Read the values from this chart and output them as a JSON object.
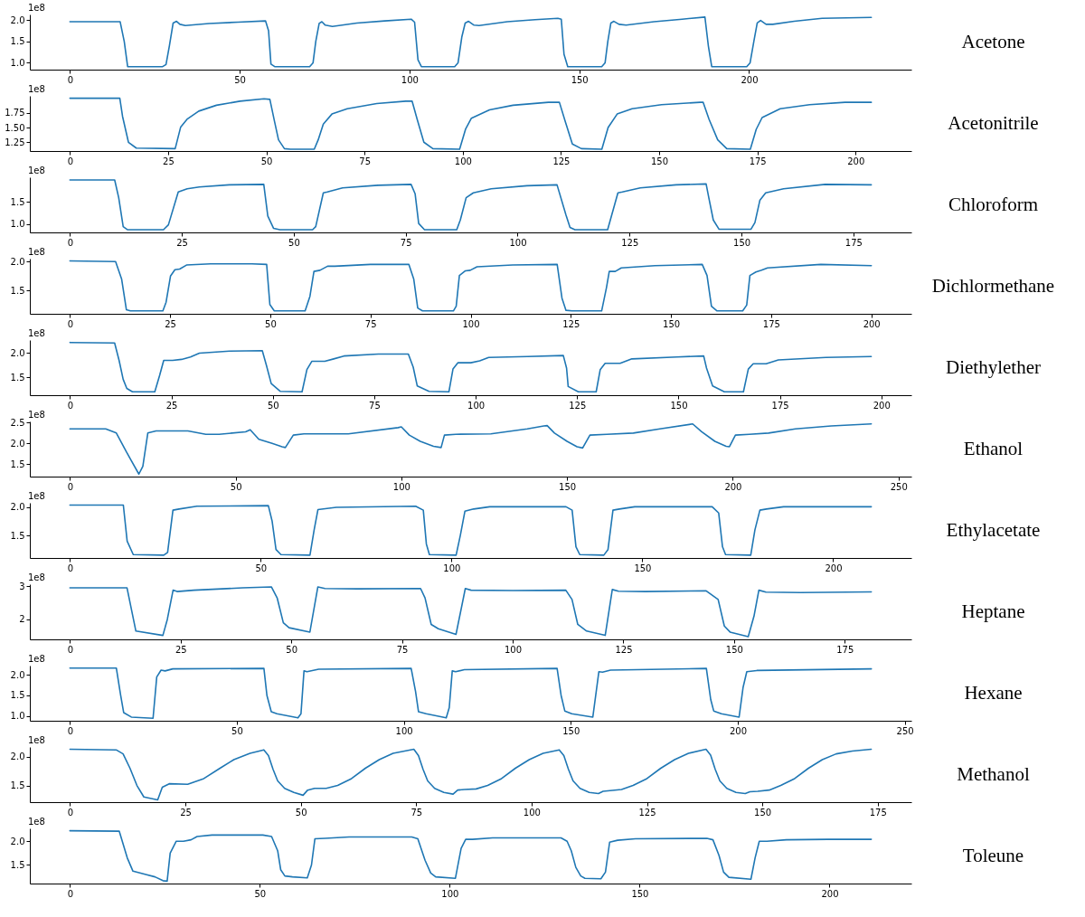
{
  "chart_data": [
    {
      "type": "line",
      "annotations": [
        "1e8"
      ],
      "xlim": [
        -11.8,
        247.8
      ],
      "ylim": [
        0.84,
        2.13
      ],
      "xticks": [
        0,
        50,
        100,
        150,
        200
      ],
      "yticks": [
        {
          "value": 1.0,
          "label": "1.0"
        },
        {
          "value": 1.5,
          "label": "1.5"
        },
        {
          "value": 2.0,
          "label": "2.0"
        }
      ],
      "series": [
        {
          "name": "Acetone",
          "color": "#1f77b4",
          "x": [
            0,
            14.8,
            16,
            17,
            27.3,
            28.3,
            29.3,
            30.4,
            31.4,
            32.4,
            34,
            41,
            49.5,
            57.6,
            58.5,
            59.2,
            60.3,
            70.6,
            71.6,
            72.4,
            73.4,
            74.2,
            75.2,
            77.3,
            84.5,
            92.7,
            100.5,
            101.5,
            102.5,
            103.5,
            113.3,
            114.3,
            115.4,
            116.4,
            117.4,
            119,
            120.5,
            128.8,
            137,
            143.7,
            144.7,
            145.5,
            146.6,
            156.6,
            157.6,
            158.4,
            159.3,
            160.2,
            161.7,
            163.8,
            172,
            180.3,
            187,
            188,
            189,
            199.3,
            200.3,
            201.4,
            202.4,
            203.4,
            205,
            207,
            213.3,
            221.5,
            236
          ],
          "values": [
            1.96,
            1.96,
            1.5,
            0.91,
            0.91,
            0.96,
            1.4,
            1.93,
            1.97,
            1.9,
            1.87,
            1.92,
            1.95,
            1.98,
            1.75,
            0.97,
            0.91,
            0.91,
            1.0,
            1.5,
            1.92,
            1.96,
            1.88,
            1.85,
            1.93,
            1.98,
            2.02,
            1.95,
            1.07,
            0.91,
            0.91,
            1.0,
            1.6,
            1.93,
            1.97,
            1.88,
            1.87,
            1.96,
            2.01,
            2.04,
            2.02,
            1.2,
            0.91,
            0.91,
            1.0,
            1.5,
            1.93,
            1.97,
            1.9,
            1.88,
            1.96,
            2.02,
            2.07,
            1.4,
            0.91,
            0.91,
            1.0,
            1.5,
            1.93,
            1.99,
            1.9,
            1.9,
            1.97,
            2.04,
            2.06
          ]
        }
      ]
    },
    {
      "type": "line",
      "annotations": [
        "1e8"
      ],
      "xlim": [
        -10.2,
        214.2
      ],
      "ylim": [
        1.1,
        2.04
      ],
      "xticks": [
        0,
        25,
        50,
        75,
        100,
        125,
        150,
        175,
        200
      ],
      "yticks": [
        {
          "value": 1.25,
          "label": "1.25"
        },
        {
          "value": 1.5,
          "label": "1.50"
        },
        {
          "value": 1.75,
          "label": "1.75"
        }
      ],
      "series": [
        {
          "name": "Acetonitrile",
          "color": "#1f77b4",
          "x": [
            0,
            12.7,
            13.4,
            14.9,
            16.9,
            26.8,
            28.2,
            29.8,
            32.8,
            37.3,
            43.3,
            49.4,
            50.9,
            52.1,
            53.1,
            54.6,
            56.1,
            62.2,
            63.2,
            64.5,
            66.7,
            70.6,
            78.1,
            85.5,
            87.1,
            88.4,
            90.1,
            92.4,
            99.2,
            100.7,
            102.2,
            106.8,
            112.8,
            121.8,
            124.6,
            126.1,
            127.9,
            130.2,
            135.4,
            137,
            139.3,
            143.1,
            150.6,
            160.4,
            161.2,
            162.7,
            164.9,
            167.2,
            173.2,
            174.7,
            176.2,
            180.8,
            188.3,
            197.3,
            204
          ],
          "values": [
            2.0,
            2.0,
            1.69,
            1.25,
            1.15,
            1.14,
            1.51,
            1.64,
            1.78,
            1.88,
            1.95,
            1.99,
            1.98,
            1.6,
            1.29,
            1.14,
            1.13,
            1.13,
            1.29,
            1.56,
            1.73,
            1.82,
            1.91,
            1.95,
            1.95,
            1.64,
            1.25,
            1.14,
            1.13,
            1.47,
            1.66,
            1.8,
            1.88,
            1.93,
            1.93,
            1.6,
            1.22,
            1.14,
            1.13,
            1.5,
            1.73,
            1.82,
            1.89,
            1.93,
            1.93,
            1.64,
            1.29,
            1.14,
            1.13,
            1.47,
            1.67,
            1.82,
            1.89,
            1.93,
            1.93
          ]
        }
      ]
    },
    {
      "type": "line",
      "annotations": [
        "1e8"
      ],
      "xlim": [
        -8.95,
        187.95
      ],
      "ylim": [
        0.81,
        2.05
      ],
      "xticks": [
        0,
        25,
        50,
        75,
        100,
        125,
        150,
        175
      ],
      "yticks": [
        {
          "value": 1.0,
          "label": "1.0"
        },
        {
          "value": 1.5,
          "label": "1.5"
        }
      ],
      "series": [
        {
          "name": "Chloroform",
          "color": "#1f77b4",
          "x": [
            0,
            10,
            10.9,
            11.9,
            12.9,
            20.9,
            22,
            24.2,
            26.2,
            28.9,
            35.6,
            43.3,
            44.2,
            45.5,
            46.9,
            54.2,
            54.9,
            56.6,
            57.5,
            60.9,
            68.8,
            76.2,
            77.1,
            77.9,
            79.2,
            86.4,
            87.2,
            88.5,
            90.1,
            94.1,
            102.1,
            108.8,
            110.8,
            111.7,
            112.8,
            120.1,
            122.4,
            123.4,
            127.4,
            135.4,
            142.1,
            142.7,
            143.7,
            145,
            152.1,
            153,
            154.1,
            155.4,
            159.4,
            168.7,
            179
          ],
          "values": [
            1.99,
            1.99,
            1.59,
            0.94,
            0.87,
            0.87,
            0.98,
            1.72,
            1.79,
            1.83,
            1.88,
            1.89,
            1.18,
            0.9,
            0.87,
            0.87,
            0.94,
            1.7,
            1.72,
            1.81,
            1.87,
            1.89,
            1.68,
            1.01,
            0.87,
            0.87,
            1.09,
            1.59,
            1.7,
            1.79,
            1.86,
            1.88,
            1.2,
            0.92,
            0.87,
            0.87,
            1.7,
            1.72,
            1.81,
            1.88,
            1.9,
            1.59,
            1.09,
            0.88,
            0.88,
            1.03,
            1.53,
            1.7,
            1.79,
            1.89,
            1.88
          ]
        }
      ]
    },
    {
      "type": "line",
      "annotations": [
        "1e8"
      ],
      "xlim": [
        -10,
        210
      ],
      "ylim": [
        1.1,
        2.05
      ],
      "xticks": [
        0,
        25,
        50,
        75,
        100,
        125,
        150,
        175,
        200
      ],
      "yticks": [
        {
          "value": 1.5,
          "label": "1.5"
        },
        {
          "value": 2.0,
          "label": "2.0"
        }
      ],
      "series": [
        {
          "name": "Dichlormethane",
          "color": "#1f77b4",
          "x": [
            0,
            11.4,
            12.9,
            14.1,
            15.1,
            23.2,
            24,
            25.1,
            26.2,
            27.4,
            29.1,
            35.1,
            45.4,
            49.1,
            49.9,
            51,
            58.7,
            59.9,
            60.9,
            62.4,
            64.3,
            66.1,
            75,
            84.6,
            85.8,
            86.8,
            88,
            95.7,
            96.4,
            97.2,
            98.7,
            99.9,
            101.6,
            110.5,
            121.6,
            122.8,
            123.8,
            125.3,
            132.7,
            133.9,
            134.6,
            136.1,
            137.6,
            146,
            157.8,
            159,
            160.1,
            161.5,
            167.9,
            168.9,
            169.7,
            171.2,
            172.6,
            174.1,
            187.4,
            200
          ],
          "values": [
            2.01,
            2.0,
            1.7,
            1.17,
            1.15,
            1.15,
            1.3,
            1.75,
            1.86,
            1.87,
            1.94,
            1.96,
            1.96,
            1.95,
            1.26,
            1.15,
            1.15,
            1.4,
            1.83,
            1.85,
            1.92,
            1.92,
            1.95,
            1.95,
            1.7,
            1.2,
            1.15,
            1.15,
            1.23,
            1.76,
            1.84,
            1.85,
            1.91,
            1.94,
            1.95,
            1.37,
            1.16,
            1.15,
            1.15,
            1.55,
            1.83,
            1.83,
            1.89,
            1.93,
            1.95,
            1.76,
            1.23,
            1.15,
            1.15,
            1.25,
            1.76,
            1.82,
            1.85,
            1.89,
            1.95,
            1.93
          ]
        }
      ]
    },
    {
      "type": "line",
      "annotations": [
        "1e8"
      ],
      "xlim": [
        -9.9,
        207.4
      ],
      "ylim": [
        1.13,
        2.27
      ],
      "xticks": [
        0,
        25,
        50,
        75,
        100,
        125,
        150,
        175,
        200
      ],
      "yticks": [
        {
          "value": 1.5,
          "label": "1.5"
        },
        {
          "value": 2.0,
          "label": "2.0"
        }
      ],
      "series": [
        {
          "name": "Diethylether",
          "color": "#1f77b4",
          "x": [
            0,
            11,
            12.1,
            13.1,
            14,
            15.4,
            20.9,
            22.1,
            23.1,
            25.3,
            27.5,
            29.7,
            31.9,
            39.3,
            47.4,
            48.4,
            49.6,
            51.8,
            57.2,
            58.4,
            59.6,
            62.8,
            65,
            67.5,
            76,
            83.4,
            84.6,
            85.6,
            88.5,
            93.4,
            94.4,
            95.6,
            98.8,
            101,
            103.2,
            112.8,
            121.6,
            122.4,
            122.8,
            125.3,
            129.7,
            130.7,
            131.9,
            135.6,
            138.5,
            149.6,
            156.2,
            156.9,
            158.4,
            161.3,
            166,
            167.2,
            168.4,
            171.6,
            174.6,
            186.3,
            197.5
          ],
          "values": [
            2.22,
            2.21,
            1.85,
            1.46,
            1.27,
            1.2,
            1.2,
            1.54,
            1.85,
            1.85,
            1.87,
            1.92,
            2.0,
            2.04,
            2.05,
            1.75,
            1.37,
            1.21,
            1.2,
            1.66,
            1.83,
            1.83,
            1.88,
            1.94,
            1.98,
            1.98,
            1.71,
            1.32,
            1.21,
            1.2,
            1.67,
            1.8,
            1.8,
            1.84,
            1.91,
            1.93,
            1.95,
            1.69,
            1.31,
            1.2,
            1.2,
            1.66,
            1.79,
            1.79,
            1.88,
            1.92,
            1.94,
            1.69,
            1.32,
            1.2,
            1.2,
            1.67,
            1.78,
            1.78,
            1.86,
            1.91,
            1.93
          ]
        }
      ]
    },
    {
      "type": "line",
      "annotations": [
        "1e8"
      ],
      "xlim": [
        -12.1,
        253.9
      ],
      "ylim": [
        1.2,
        2.53
      ],
      "xticks": [
        0,
        50,
        100,
        150,
        200,
        250
      ],
      "yticks": [
        {
          "value": 1.5,
          "label": "1.5"
        },
        {
          "value": 2.0,
          "label": "2.0"
        },
        {
          "value": 2.5,
          "label": "2.5"
        }
      ],
      "series": [
        {
          "name": "Ethanol",
          "color": "#1f77b4",
          "x": [
            0,
            10.8,
            14,
            17,
            20.8,
            22,
            23.5,
            26,
            35.6,
            41,
            45,
            53,
            54.4,
            57,
            61,
            64,
            65,
            67.4,
            70.6,
            84,
            99,
            100,
            102.4,
            105.7,
            109.7,
            112,
            113,
            116.4,
            127,
            138,
            143,
            144,
            146.2,
            150,
            153,
            154.7,
            156.9,
            162,
            170,
            178,
            187.9,
            190.6,
            194.6,
            198,
            199,
            200.8,
            205,
            210.8,
            218.9,
            229.7,
            241.8
          ],
          "values": [
            2.35,
            2.35,
            2.25,
            1.8,
            1.26,
            1.45,
            2.25,
            2.3,
            2.3,
            2.22,
            2.22,
            2.28,
            2.33,
            2.1,
            2.0,
            1.92,
            1.9,
            2.2,
            2.23,
            2.23,
            2.38,
            2.4,
            2.2,
            2.05,
            1.93,
            1.9,
            2.2,
            2.22,
            2.23,
            2.35,
            2.42,
            2.43,
            2.25,
            2.05,
            1.92,
            1.89,
            2.2,
            2.22,
            2.25,
            2.35,
            2.47,
            2.28,
            2.05,
            1.93,
            1.92,
            2.2,
            2.22,
            2.25,
            2.35,
            2.42,
            2.47
          ]
        }
      ]
    },
    {
      "type": "line",
      "annotations": [
        "1e8"
      ],
      "xlim": [
        -10.5,
        220.5
      ],
      "ylim": [
        1.1,
        2.08
      ],
      "xticks": [
        0,
        50,
        100,
        150,
        200
      ],
      "yticks": [
        {
          "value": 1.5,
          "label": "1.5"
        },
        {
          "value": 2.0,
          "label": "2.0"
        }
      ],
      "series": [
        {
          "name": "Ethylacetate",
          "color": "#1f77b4",
          "x": [
            0,
            14,
            15,
            16.6,
            24.6,
            25.6,
            27,
            28.6,
            33.3,
            52,
            53,
            54,
            55.3,
            62.9,
            64,
            65,
            69.8,
            90.6,
            92.6,
            93.4,
            94.2,
            101.2,
            102.3,
            103.5,
            105.8,
            110,
            130,
            131.6,
            132.6,
            133.6,
            139.9,
            141,
            142.3,
            144,
            148,
            168.3,
            170,
            171,
            171.8,
            178.4,
            179.5,
            180.8,
            182.5,
            187,
            210
          ],
          "values": [
            2.04,
            2.04,
            1.4,
            1.16,
            1.15,
            1.2,
            1.95,
            1.97,
            2.02,
            2.03,
            1.75,
            1.25,
            1.16,
            1.15,
            1.6,
            1.96,
            2.0,
            2.02,
            1.95,
            1.35,
            1.16,
            1.15,
            1.5,
            1.93,
            1.97,
            2.01,
            2.01,
            1.95,
            1.3,
            1.16,
            1.15,
            1.25,
            1.95,
            1.97,
            2.01,
            2.01,
            1.9,
            1.3,
            1.16,
            1.15,
            1.6,
            1.95,
            1.97,
            2.01,
            2.01
          ]
        }
      ]
    },
    {
      "type": "line",
      "annotations": [
        "1e8"
      ],
      "xlim": [
        -9.05,
        190.05
      ],
      "ylim": [
        1.4,
        3.06
      ],
      "xticks": [
        0,
        25,
        50,
        75,
        100,
        125,
        150,
        175
      ],
      "yticks": [
        2,
        3
      ],
      "series": [
        {
          "name": "Heptane",
          "color": "#1f77b4",
          "x": [
            0,
            12.9,
            14.9,
            21,
            22,
            23.3,
            24.2,
            28,
            39,
            45.5,
            46.8,
            48.2,
            49.5,
            54.2,
            56,
            57.6,
            65,
            79.2,
            80.2,
            81.6,
            83.2,
            87.2,
            89.3,
            90.6,
            100,
            112,
            113.4,
            114.7,
            116.7,
            120.9,
            122.5,
            123.9,
            130,
            143.7,
            146.4,
            147.8,
            149.1,
            153.2,
            154.5,
            155.6,
            157.2,
            165,
            181
          ],
          "values": [
            2.95,
            2.95,
            1.65,
            1.52,
            2.0,
            2.88,
            2.84,
            2.88,
            2.95,
            2.98,
            2.65,
            1.9,
            1.75,
            1.62,
            2.98,
            2.93,
            2.92,
            2.93,
            2.65,
            1.85,
            1.72,
            1.55,
            2.93,
            2.88,
            2.87,
            2.88,
            2.6,
            1.85,
            1.65,
            1.52,
            2.9,
            2.85,
            2.84,
            2.86,
            2.6,
            1.8,
            1.62,
            1.48,
            2.1,
            2.88,
            2.82,
            2.81,
            2.83
          ]
        }
      ]
    },
    {
      "type": "line",
      "annotations": [
        "1e8"
      ],
      "xlim": [
        -12,
        252
      ],
      "ylim": [
        0.88,
        2.23
      ],
      "xticks": [
        0,
        50,
        100,
        150,
        200,
        250
      ],
      "yticks": [
        {
          "value": 1.0,
          "label": "1.0"
        },
        {
          "value": 1.5,
          "label": "1.5"
        },
        {
          "value": 2.0,
          "label": "2.0"
        }
      ],
      "series": [
        {
          "name": "Hexane",
          "color": "#1f77b4",
          "x": [
            0,
            13.9,
            15.2,
            16.1,
            18.4,
            24.9,
            26,
            27.3,
            28.5,
            30.8,
            58.1,
            59,
            60.3,
            62,
            68.3,
            69.2,
            70.1,
            71,
            74.5,
            102.2,
            103.5,
            104.4,
            106.7,
            112.7,
            113.6,
            114.5,
            115.5,
            118.1,
            145.9,
            147.1,
            148.2,
            150.3,
            156.6,
            158.4,
            159.5,
            161.9,
            190.6,
            191.9,
            192.8,
            195.1,
            200.4,
            201.6,
            202.7,
            205.7,
            240
          ],
          "values": [
            2.17,
            2.17,
            1.5,
            1.08,
            0.97,
            0.94,
            1.95,
            2.12,
            2.1,
            2.15,
            2.16,
            1.5,
            1.1,
            1.05,
            0.95,
            1.05,
            2.1,
            2.08,
            2.14,
            2.16,
            1.6,
            1.1,
            1.05,
            0.95,
            1.2,
            2.1,
            2.08,
            2.13,
            2.16,
            1.5,
            1.12,
            1.05,
            0.97,
            2.08,
            2.07,
            2.12,
            2.16,
            1.4,
            1.12,
            1.05,
            0.97,
            1.7,
            2.08,
            2.11,
            2.15
          ]
        }
      ]
    },
    {
      "type": "line",
      "annotations": [
        "1e8"
      ],
      "xlim": [
        -8.7,
        182.3
      ],
      "ylim": [
        1.21,
        2.17
      ],
      "xticks": [
        0,
        25,
        50,
        75,
        100,
        125,
        150,
        175
      ],
      "yticks": [
        {
          "value": 1.5,
          "label": "1.5"
        },
        {
          "value": 2.0,
          "label": "2.0"
        }
      ],
      "series": [
        {
          "name": "Methanol",
          "color": "#1f77b4",
          "x": [
            0,
            10,
            11.5,
            13,
            14.5,
            16,
            19,
            20,
            21.5,
            25.5,
            29,
            32.5,
            35.5,
            39,
            42,
            43,
            44,
            45,
            46.5,
            48.5,
            50.5,
            51.5,
            53,
            55.5,
            58,
            61,
            64,
            67,
            70,
            74.5,
            75.5,
            76.5,
            77.5,
            79,
            81,
            83,
            84,
            85.5,
            88,
            90.5,
            93.5,
            96.5,
            99.5,
            102.5,
            106,
            107,
            108,
            109,
            110.5,
            112.5,
            114.5,
            115.5,
            117,
            119.5,
            122,
            125,
            128,
            131,
            134,
            137.8,
            138.8,
            139.8,
            140.8,
            142.3,
            144.3,
            146.3,
            147.3,
            149,
            151.5,
            154,
            157,
            160,
            163,
            166,
            169.5,
            173.6
          ],
          "values": [
            2.13,
            2.12,
            2.05,
            1.8,
            1.5,
            1.3,
            1.25,
            1.47,
            1.53,
            1.52,
            1.62,
            1.8,
            1.95,
            2.06,
            2.12,
            2.02,
            1.78,
            1.58,
            1.45,
            1.38,
            1.33,
            1.42,
            1.45,
            1.45,
            1.5,
            1.62,
            1.8,
            1.95,
            2.06,
            2.13,
            2.02,
            1.78,
            1.58,
            1.45,
            1.38,
            1.35,
            1.42,
            1.43,
            1.44,
            1.5,
            1.62,
            1.8,
            1.95,
            2.06,
            2.12,
            2.02,
            1.78,
            1.58,
            1.45,
            1.38,
            1.36,
            1.4,
            1.41,
            1.43,
            1.5,
            1.62,
            1.8,
            1.95,
            2.06,
            2.13,
            2.03,
            1.78,
            1.58,
            1.45,
            1.38,
            1.36,
            1.39,
            1.4,
            1.42,
            1.5,
            1.62,
            1.8,
            1.95,
            2.05,
            2.1,
            2.13
          ]
        }
      ]
    },
    {
      "type": "line",
      "annotations": [
        "1e8"
      ],
      "xlim": [
        -10.55,
        221.55
      ],
      "ylim": [
        1.11,
        2.27
      ],
      "xticks": [
        0,
        50,
        100,
        150,
        200
      ],
      "yticks": [
        {
          "value": 1.5,
          "label": "1.5"
        },
        {
          "value": 2.0,
          "label": "2.0"
        }
      ],
      "series": [
        {
          "name": "Toleune",
          "color": "#1f77b4",
          "x": [
            0,
            13,
            15.1,
            16.6,
            20,
            22.4,
            24.5,
            25.6,
            26.4,
            28,
            29.9,
            31.9,
            33.5,
            37.4,
            50.8,
            53.1,
            54.7,
            55.5,
            56.6,
            58.6,
            62.5,
            63.6,
            64.5,
            67.2,
            73.5,
            90,
            91.6,
            93.5,
            95,
            96.3,
            101.5,
            103,
            104.2,
            106,
            111.3,
            129.3,
            130.9,
            132,
            133.2,
            134.5,
            135.6,
            139.8,
            141,
            142.1,
            144.2,
            148.9,
            167.7,
            169.3,
            170.9,
            172.1,
            173.5,
            179.3,
            180.4,
            181.5,
            183.5,
            188.6,
            199.6,
            211
          ],
          "values": [
            2.22,
            2.21,
            1.65,
            1.37,
            1.3,
            1.25,
            1.17,
            1.16,
            1.75,
            2.0,
            2.0,
            2.03,
            2.1,
            2.13,
            2.13,
            2.1,
            1.8,
            1.4,
            1.27,
            1.25,
            1.23,
            1.5,
            2.05,
            2.06,
            2.09,
            2.09,
            2.05,
            1.6,
            1.33,
            1.25,
            1.22,
            1.85,
            2.04,
            2.04,
            2.07,
            2.07,
            2.0,
            1.8,
            1.45,
            1.27,
            1.22,
            1.21,
            1.35,
            1.98,
            2.02,
            2.05,
            2.06,
            2.03,
            1.7,
            1.35,
            1.24,
            1.2,
            1.65,
            2.0,
            2.0,
            2.03,
            2.04,
            2.04
          ]
        }
      ]
    }
  ]
}
